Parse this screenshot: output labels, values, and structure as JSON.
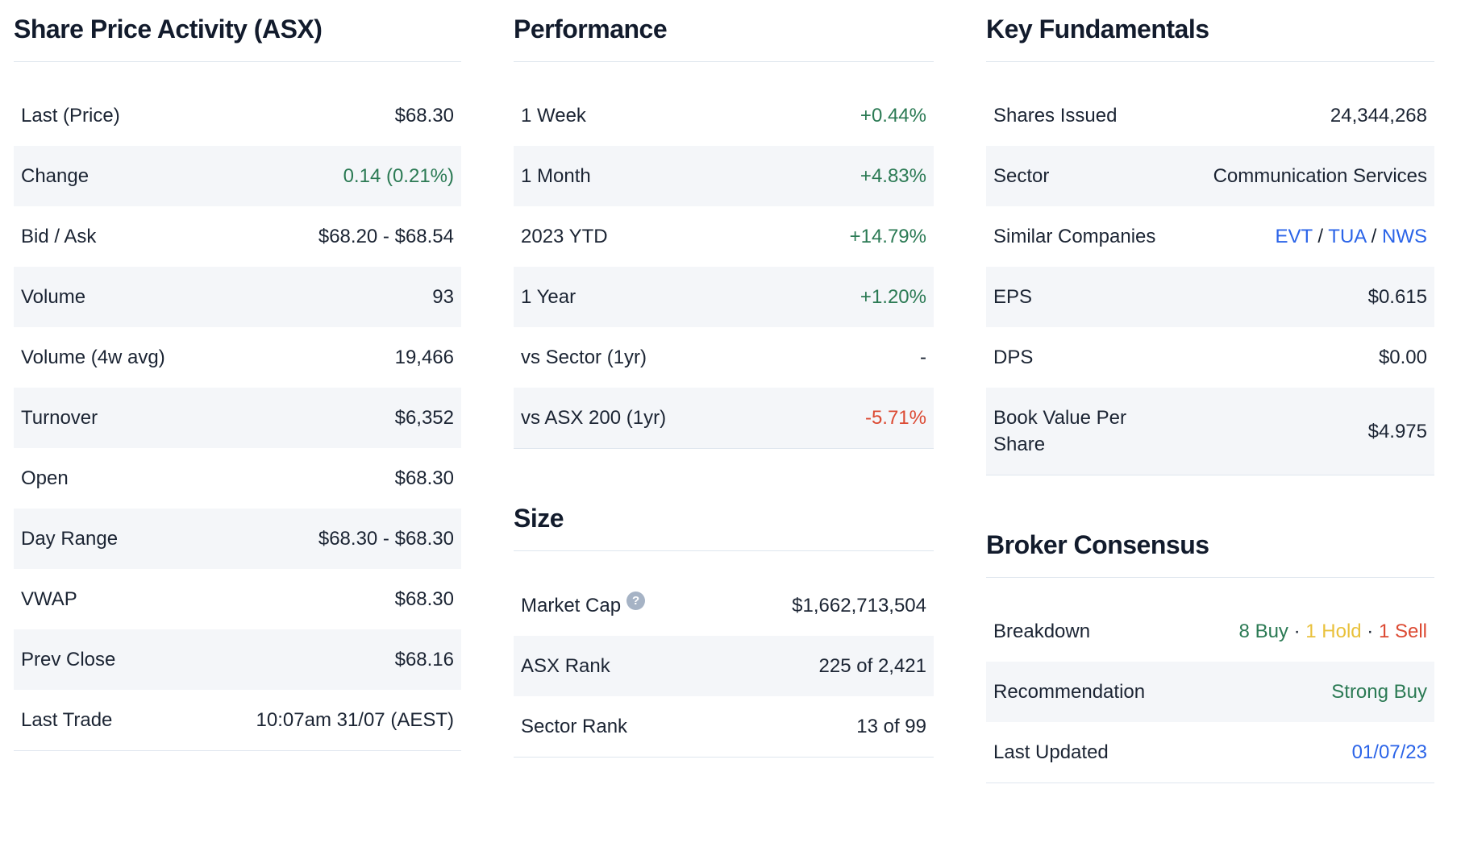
{
  "colors": {
    "heading": "#121b2c",
    "text": "#1b2433",
    "green": "#2b7a54",
    "red": "#dc4a33",
    "gold": "#e9c13c",
    "blue": "#2b64e8",
    "row_alt_bg": "#f4f6f9",
    "line": "#dfe6ee",
    "help_icon_bg": "#a6b3c5"
  },
  "icons": {
    "help_glyph": "?"
  },
  "sections": {
    "share_price_activity": {
      "title": "Share Price Activity (ASX)",
      "rows": [
        {
          "label": "Last (Price)",
          "value": "$68.30"
        },
        {
          "label": "Change",
          "value": "0.14 (0.21%)",
          "color": "green"
        },
        {
          "label": "Bid / Ask",
          "value": "$68.20 - $68.54"
        },
        {
          "label": "Volume",
          "value": "93"
        },
        {
          "label": "Volume (4w avg)",
          "value": "19,466"
        },
        {
          "label": "Turnover",
          "value": "$6,352"
        },
        {
          "label": "Open",
          "value": "$68.30"
        },
        {
          "label": "Day Range",
          "value": "$68.30 - $68.30"
        },
        {
          "label": "VWAP",
          "value": "$68.30"
        },
        {
          "label": "Prev Close",
          "value": "$68.16"
        },
        {
          "label": "Last Trade",
          "value": "10:07am 31/07 (AEST)"
        }
      ]
    },
    "performance": {
      "title": "Performance",
      "rows": [
        {
          "label": "1 Week",
          "value": "+0.44%",
          "color": "green"
        },
        {
          "label": "1 Month",
          "value": "+4.83%",
          "color": "green"
        },
        {
          "label": "2023 YTD",
          "value": "+14.79%",
          "color": "green"
        },
        {
          "label": "1 Year",
          "value": "+1.20%",
          "color": "green"
        },
        {
          "label": "vs Sector (1yr)",
          "value": "-"
        },
        {
          "label": "vs ASX 200 (1yr)",
          "value": "-5.71%",
          "color": "red"
        }
      ]
    },
    "size": {
      "title": "Size",
      "rows": [
        {
          "label": "Market Cap",
          "value": "$1,662,713,504",
          "help_icon": true
        },
        {
          "label": "ASX Rank",
          "value": "225 of 2,421"
        },
        {
          "label": "Sector Rank",
          "value": "13 of 99"
        }
      ]
    },
    "key_fundamentals": {
      "title": "Key Fundamentals",
      "rows": [
        {
          "label": "Shares Issued",
          "value": "24,344,268"
        },
        {
          "label": "Sector",
          "value": "Communication Services"
        },
        {
          "label": "Similar Companies",
          "links": [
            "EVT",
            "TUA",
            "NWS"
          ],
          "separator": " / "
        },
        {
          "label": "EPS",
          "value": "$0.615"
        },
        {
          "label": "DPS",
          "value": "$0.00"
        },
        {
          "label": "Book Value Per Share",
          "value": "$4.975"
        }
      ]
    },
    "broker_consensus": {
      "title": "Broker Consensus",
      "rows": [
        {
          "label": "Breakdown",
          "separator": " · ",
          "parts": [
            {
              "text": "8 Buy",
              "color": "green"
            },
            {
              "text": "1 Hold",
              "color": "gold"
            },
            {
              "text": "1 Sell",
              "color": "red"
            }
          ]
        },
        {
          "label": "Recommendation",
          "value": "Strong Buy",
          "color": "green"
        },
        {
          "label": "Last Updated",
          "link": "01/07/23"
        }
      ]
    }
  }
}
